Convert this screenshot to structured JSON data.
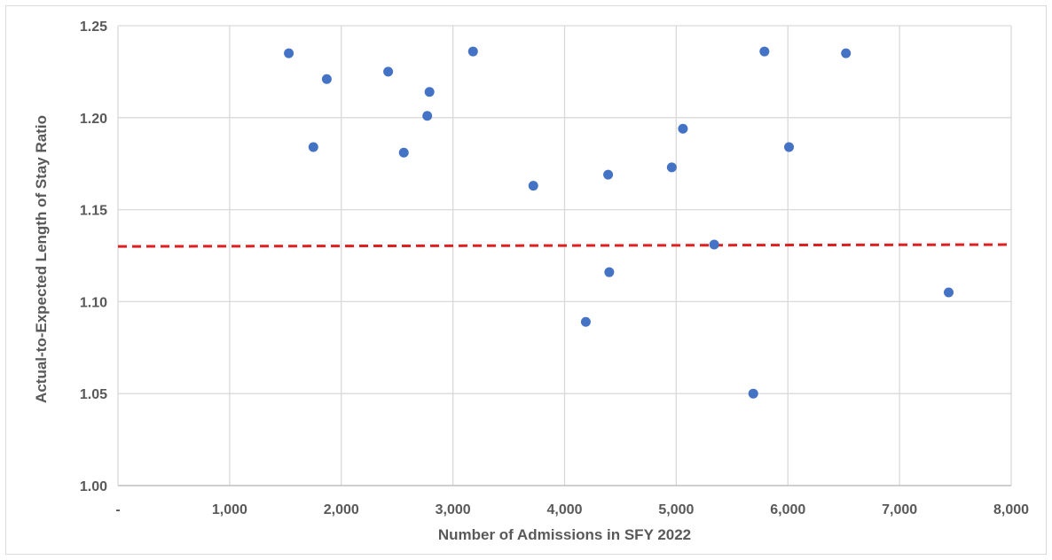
{
  "chart_data": {
    "type": "scatter",
    "title": "",
    "xlabel": "Number of Admissions in SFY 2022",
    "ylabel": "Actual-to-Expected Length of Stay Ratio",
    "xlim": [
      0,
      8000
    ],
    "ylim": [
      1.0,
      1.25
    ],
    "x_ticks": [
      0,
      1000,
      2000,
      3000,
      4000,
      5000,
      6000,
      7000,
      8000
    ],
    "x_tick_labels": [
      "-",
      "1,000",
      "2,000",
      "3,000",
      "4,000",
      "5,000",
      "6,000",
      "7,000",
      "8,000"
    ],
    "y_ticks": [
      1.0,
      1.05,
      1.1,
      1.15,
      1.2,
      1.25
    ],
    "y_tick_labels": [
      "1.00",
      "1.05",
      "1.10",
      "1.15",
      "1.20",
      "1.25"
    ],
    "grid": true,
    "legend": "none",
    "series": [
      {
        "marker_color": "#4472c4",
        "points": [
          {
            "x": 1530,
            "y": 1.235
          },
          {
            "x": 1750,
            "y": 1.184
          },
          {
            "x": 1870,
            "y": 1.221
          },
          {
            "x": 2420,
            "y": 1.225
          },
          {
            "x": 2560,
            "y": 1.181
          },
          {
            "x": 2770,
            "y": 1.201
          },
          {
            "x": 2790,
            "y": 1.214
          },
          {
            "x": 3180,
            "y": 1.236
          },
          {
            "x": 3720,
            "y": 1.163
          },
          {
            "x": 4190,
            "y": 1.089
          },
          {
            "x": 4390,
            "y": 1.169
          },
          {
            "x": 4400,
            "y": 1.116
          },
          {
            "x": 4960,
            "y": 1.173
          },
          {
            "x": 5060,
            "y": 1.194
          },
          {
            "x": 5340,
            "y": 1.131
          },
          {
            "x": 5690,
            "y": 1.05
          },
          {
            "x": 5790,
            "y": 1.236
          },
          {
            "x": 6010,
            "y": 1.184
          },
          {
            "x": 6520,
            "y": 1.235
          },
          {
            "x": 7440,
            "y": 1.105
          }
        ]
      }
    ],
    "trendline": {
      "style": "dashed",
      "color": "#e02020",
      "start": {
        "x": 0,
        "y": 1.13
      },
      "end": {
        "x": 8000,
        "y": 1.131
      }
    }
  }
}
